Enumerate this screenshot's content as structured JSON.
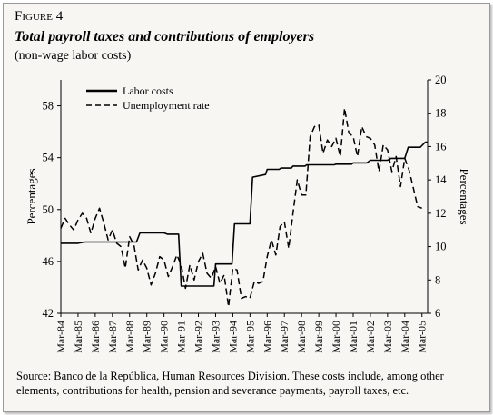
{
  "figure": {
    "label": "Figure 4",
    "title": "Total payroll taxes and contributions of employers",
    "subtitle": "(non-wage labor costs)",
    "source": "Source: Banco de la República, Human Resources Division. These costs include, among other elements, contributions for health, pension and severance payments, payroll taxes, etc."
  },
  "chart_data": {
    "type": "line",
    "x_tick_labels": [
      "Mar-84",
      "Mar-85",
      "Mar-86",
      "Mar-87",
      "Mar-88",
      "Mar-89",
      "Mar-90",
      "Mar-91",
      "Mar-92",
      "Mar-93",
      "Mar-94",
      "Mar-95",
      "Mar-96",
      "Mar-97",
      "Mar-98",
      "Mar-99",
      "Mar-00",
      "Mar-01",
      "Mar-02",
      "Mar-03",
      "Mar-04",
      "Mar-05"
    ],
    "xlim": [
      1984.0,
      2005.33
    ],
    "y_left": {
      "label": "Percentages",
      "ylim": [
        42,
        60
      ],
      "ticks": [
        42,
        46,
        50,
        54,
        58
      ]
    },
    "y_right": {
      "label": "Percentages",
      "ylim": [
        6,
        20
      ],
      "ticks": [
        6,
        8,
        10,
        12,
        14,
        16,
        18,
        20
      ]
    },
    "legend": {
      "position": "top-left",
      "entries": [
        "Labor costs",
        "Unemployment rate"
      ]
    },
    "series": [
      {
        "name": "Labor costs",
        "axis": "left",
        "style": "solid",
        "x": [
          1984.0,
          1985.0,
          1985.4,
          1988.4,
          1988.6,
          1990.0,
          1990.2,
          1990.85,
          1991.0,
          1992.9,
          1993.0,
          1993.95,
          1994.1,
          1995.0,
          1995.15,
          1995.9,
          1996.0,
          1996.7,
          1996.8,
          1997.4,
          1997.5,
          1998.2,
          1998.3,
          1999.9,
          2000.0,
          2000.9,
          2001.0,
          2001.8,
          2002.0,
          2003.0,
          2003.2,
          2004.0,
          2004.2,
          2004.9,
          2005.2,
          2005.33
        ],
        "y": [
          47.4,
          47.4,
          47.5,
          47.5,
          48.2,
          48.2,
          48.1,
          48.1,
          44.1,
          44.1,
          45.8,
          45.8,
          48.9,
          48.9,
          52.5,
          52.7,
          53.1,
          53.1,
          53.2,
          53.2,
          53.35,
          53.35,
          53.45,
          53.45,
          53.5,
          53.5,
          53.6,
          53.6,
          53.8,
          53.8,
          53.95,
          53.95,
          54.8,
          54.8,
          55.2,
          55.2
        ]
      },
      {
        "name": "Unemployment rate",
        "axis": "right",
        "style": "dashed",
        "x": [
          1984.0,
          1984.25,
          1984.5,
          1984.75,
          1985.0,
          1985.25,
          1985.5,
          1985.75,
          1986.0,
          1986.25,
          1986.5,
          1986.75,
          1987.0,
          1987.25,
          1987.5,
          1987.75,
          1988.0,
          1988.25,
          1988.5,
          1988.75,
          1989.0,
          1989.25,
          1989.5,
          1989.75,
          1990.0,
          1990.25,
          1990.5,
          1990.75,
          1991.0,
          1991.25,
          1991.5,
          1991.75,
          1992.0,
          1992.25,
          1992.5,
          1992.75,
          1993.0,
          1993.25,
          1993.5,
          1993.75,
          1994.0,
          1994.25,
          1994.5,
          1994.75,
          1995.0,
          1995.25,
          1995.5,
          1995.75,
          1996.0,
          1996.25,
          1996.5,
          1996.75,
          1997.0,
          1997.25,
          1997.5,
          1997.75,
          1998.0,
          1998.25,
          1998.5,
          1998.75,
          1999.0,
          1999.25,
          1999.5,
          1999.75,
          2000.0,
          2000.25,
          2000.5,
          2000.75,
          2001.0,
          2001.25,
          2001.5,
          2001.75,
          2002.0,
          2002.25,
          2002.5,
          2002.75,
          2003.0,
          2003.25,
          2003.5,
          2003.75,
          2004.0,
          2004.25,
          2004.5,
          2004.75,
          2005.0
        ],
        "y": [
          11.1,
          11.7,
          11.3,
          11.0,
          11.6,
          12.0,
          11.7,
          10.8,
          11.7,
          12.3,
          11.4,
          10.4,
          11.0,
          10.2,
          10.0,
          8.7,
          10.6,
          10.1,
          8.6,
          9.2,
          8.7,
          7.7,
          8.4,
          9.4,
          9.2,
          8.2,
          8.8,
          9.5,
          8.9,
          7.5,
          8.9,
          8.0,
          9.1,
          9.6,
          8.4,
          8.1,
          8.8,
          7.8,
          8.3,
          6.4,
          8.7,
          8.6,
          6.9,
          7.0,
          6.9,
          7.9,
          7.8,
          7.9,
          9.4,
          10.4,
          9.5,
          11.2,
          11.5,
          9.9,
          12.0,
          14.0,
          13.1,
          13.1,
          16.6,
          17.2,
          17.3,
          15.6,
          16.4,
          16.0,
          16.5,
          15.4,
          18.3,
          16.8,
          16.6,
          15.4,
          17.2,
          16.6,
          16.5,
          16.1,
          14.5,
          16.1,
          15.8,
          14.5,
          15.4,
          13.6,
          15.3,
          14.6,
          13.5,
          12.4,
          12.3
        ]
      }
    ]
  }
}
